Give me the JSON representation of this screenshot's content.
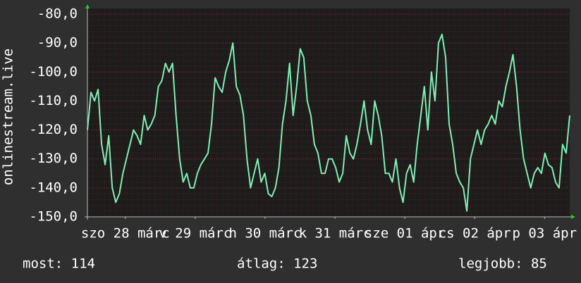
{
  "chart_data": {
    "type": "line",
    "ylabel": "onlinestream.live",
    "color": "#7ff0b4",
    "grid": true,
    "x": [
      0,
      1,
      2,
      3,
      4,
      5,
      6,
      7,
      8,
      9,
      10,
      11,
      12,
      13,
      14,
      15,
      16,
      17,
      18,
      19,
      20,
      21,
      22,
      23,
      24,
      25,
      26,
      27,
      28,
      29,
      30,
      31,
      32,
      33,
      34,
      35,
      36,
      37,
      38,
      39,
      40,
      41,
      42,
      43,
      44,
      45,
      46,
      47,
      48,
      49,
      50,
      51,
      52,
      53,
      54,
      55,
      56,
      57,
      58,
      59,
      60,
      61,
      62,
      63,
      64,
      65,
      66,
      67,
      68,
      69,
      70,
      71,
      72,
      73,
      74,
      75,
      76,
      77,
      78,
      79,
      80,
      81,
      82,
      83,
      84,
      85,
      86,
      87,
      88,
      89,
      90,
      91,
      92,
      93,
      94,
      95,
      96,
      97,
      98,
      99,
      100,
      101,
      102,
      103,
      104,
      105,
      106,
      107,
      108,
      109,
      110,
      111,
      112,
      113,
      114,
      115,
      116,
      117,
      118,
      119,
      120,
      121,
      122,
      123,
      124,
      125,
      126,
      127,
      128,
      129,
      130,
      131,
      132,
      133,
      134,
      135,
      136
    ],
    "values": [
      -120,
      -107,
      -110,
      -106,
      -125,
      -132,
      -122,
      -140,
      -145,
      -142,
      -135,
      -130,
      -125,
      -120,
      -122,
      -125,
      -115,
      -120,
      -118,
      -115,
      -105,
      -103,
      -97,
      -100,
      -97,
      -115,
      -130,
      -138,
      -135,
      -140,
      -140,
      -135,
      -132,
      -130,
      -128,
      -118,
      -102,
      -105,
      -107,
      -100,
      -96,
      -90,
      -105,
      -108,
      -115,
      -130,
      -140,
      -135,
      -130,
      -138,
      -135,
      -142,
      -143,
      -140,
      -133,
      -118,
      -110,
      -97,
      -115,
      -105,
      -92,
      -95,
      -110,
      -115,
      -125,
      -128,
      -135,
      -135,
      -130,
      -130,
      -133,
      -138,
      -135,
      -122,
      -128,
      -130,
      -125,
      -118,
      -110,
      -120,
      -125,
      -110,
      -115,
      -122,
      -135,
      -135,
      -138,
      -130,
      -140,
      -145,
      -135,
      -132,
      -138,
      -125,
      -115,
      -105,
      -120,
      -100,
      -110,
      -90,
      -87,
      -95,
      -118,
      -125,
      -135,
      -138,
      -140,
      -148,
      -130,
      -125,
      -120,
      -125,
      -120,
      -118,
      -115,
      -118,
      -110,
      -112,
      -105,
      -100,
      -94,
      -105,
      -120,
      -130,
      -135,
      -140,
      -135,
      -133,
      -135,
      -128,
      -132,
      -133,
      -138,
      -140,
      -125,
      -128,
      -115
    ],
    "xlim": [
      0,
      136
    ],
    "xticks": [
      {
        "value": 10.7,
        "label": "szo 28 márc"
      },
      {
        "value": 30.4,
        "label": "v 29 márc"
      },
      {
        "value": 50.1,
        "label": "h 30 márc"
      },
      {
        "value": 69.8,
        "label": "k 31 márc"
      },
      {
        "value": 89.5,
        "label": "sze 01 ápr"
      },
      {
        "value": 109.2,
        "label": "cs 02 ápr"
      },
      {
        "value": 128.9,
        "label": "p 03 ápr"
      }
    ],
    "ylim": [
      -150,
      -80
    ],
    "yticks": [
      {
        "value": -150,
        "label": "-150,0"
      },
      {
        "value": -140,
        "label": "-140,0"
      },
      {
        "value": -130,
        "label": "-130,0"
      },
      {
        "value": -120,
        "label": "-120,0"
      },
      {
        "value": -110,
        "label": "-110,0"
      },
      {
        "value": -100,
        "label": "-100,0"
      },
      {
        "value": -90,
        "label": "-90,0"
      },
      {
        "value": -80,
        "label": "-80,0"
      }
    ],
    "footer": {
      "current": "most: 114",
      "average": "átlag: 123",
      "best": "legjobb: 85"
    }
  }
}
